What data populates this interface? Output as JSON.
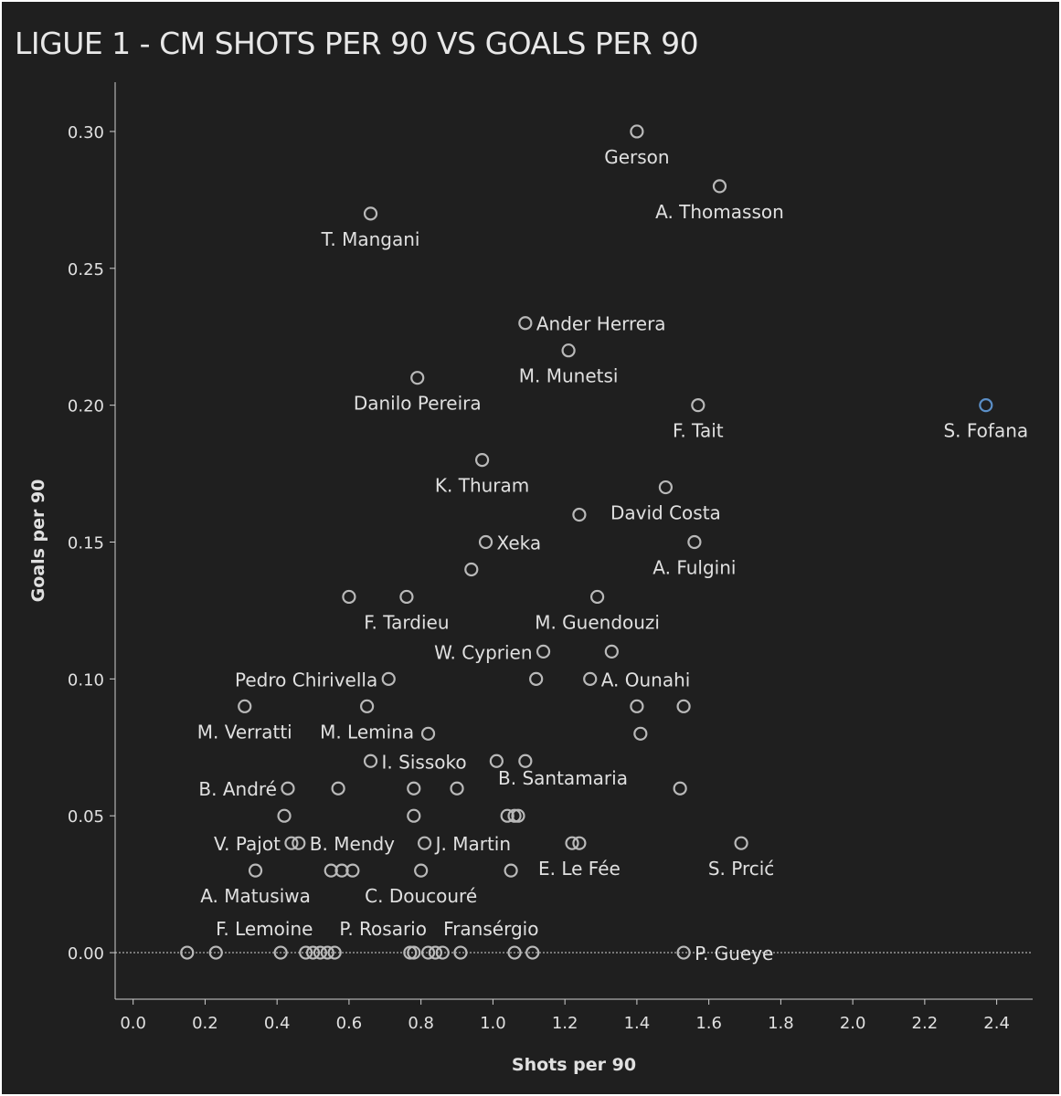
{
  "chart_data": {
    "type": "scatter",
    "title": "LIGUE 1 - CM SHOTS PER 90 VS GOALS PER 90",
    "xlabel": "Shots per 90",
    "ylabel": "Goals per 90",
    "xlim": [
      -0.05,
      2.5
    ],
    "ylim": [
      -0.017,
      0.318
    ],
    "xticks": [
      "0.0",
      "0.2",
      "0.4",
      "0.6",
      "0.8",
      "1.0",
      "1.2",
      "1.4",
      "1.6",
      "1.8",
      "2.0",
      "2.2",
      "2.4"
    ],
    "yticks": [
      "0.00",
      "0.05",
      "0.10",
      "0.15",
      "0.20",
      "0.25",
      "0.30"
    ],
    "grid": false,
    "zero_line": "dotted",
    "colors": {
      "background": "#1f1f1f",
      "point": "#b9b9b9",
      "highlight": "#5b8fc7",
      "text": "#e0e0e0"
    },
    "points": [
      {
        "x": 1.4,
        "y": 0.3,
        "label": "Gerson"
      },
      {
        "x": 1.63,
        "y": 0.28,
        "label": "A. Thomasson"
      },
      {
        "x": 0.66,
        "y": 0.27,
        "label": "T. Mangani"
      },
      {
        "x": 1.09,
        "y": 0.23,
        "label": "Ander Herrera"
      },
      {
        "x": 1.21,
        "y": 0.22,
        "label": "M. Munetsi"
      },
      {
        "x": 0.79,
        "y": 0.21,
        "label": "Danilo Pereira"
      },
      {
        "x": 1.57,
        "y": 0.2,
        "label": "F. Tait"
      },
      {
        "x": 2.37,
        "y": 0.2,
        "label": "S. Fofana",
        "highlight": true
      },
      {
        "x": 0.97,
        "y": 0.18,
        "label": "K. Thuram"
      },
      {
        "x": 1.48,
        "y": 0.17,
        "label": "David Costa"
      },
      {
        "x": 1.24,
        "y": 0.16,
        "label": ""
      },
      {
        "x": 0.98,
        "y": 0.15,
        "label": "Xeka"
      },
      {
        "x": 1.56,
        "y": 0.15,
        "label": "A. Fulgini"
      },
      {
        "x": 0.94,
        "y": 0.14,
        "label": ""
      },
      {
        "x": 0.6,
        "y": 0.13,
        "label": ""
      },
      {
        "x": 0.76,
        "y": 0.13,
        "label": "F. Tardieu"
      },
      {
        "x": 1.29,
        "y": 0.13,
        "label": "M. Guendouzi"
      },
      {
        "x": 1.14,
        "y": 0.11,
        "label": "W. Cyprien"
      },
      {
        "x": 1.33,
        "y": 0.11,
        "label": ""
      },
      {
        "x": 0.71,
        "y": 0.1,
        "label": "Pedro Chirivella"
      },
      {
        "x": 1.12,
        "y": 0.1,
        "label": ""
      },
      {
        "x": 1.27,
        "y": 0.1,
        "label": "A. Ounahi"
      },
      {
        "x": 0.31,
        "y": 0.09,
        "label": "M. Verratti"
      },
      {
        "x": 0.65,
        "y": 0.09,
        "label": "M. Lemina"
      },
      {
        "x": 1.4,
        "y": 0.09,
        "label": ""
      },
      {
        "x": 1.53,
        "y": 0.09,
        "label": ""
      },
      {
        "x": 0.82,
        "y": 0.08,
        "label": ""
      },
      {
        "x": 1.41,
        "y": 0.08,
        "label": ""
      },
      {
        "x": 0.66,
        "y": 0.07,
        "label": "I. Sissoko"
      },
      {
        "x": 1.01,
        "y": 0.07,
        "label": ""
      },
      {
        "x": 1.09,
        "y": 0.07,
        "label": ""
      },
      {
        "x": 0.43,
        "y": 0.06,
        "label": "B. André"
      },
      {
        "x": 0.57,
        "y": 0.06,
        "label": ""
      },
      {
        "x": 0.78,
        "y": 0.06,
        "label": ""
      },
      {
        "x": 0.9,
        "y": 0.06,
        "label": "B. Santamaria"
      },
      {
        "x": 1.52,
        "y": 0.06,
        "label": ""
      },
      {
        "x": 0.42,
        "y": 0.05,
        "label": ""
      },
      {
        "x": 0.78,
        "y": 0.05,
        "label": ""
      },
      {
        "x": 1.04,
        "y": 0.05,
        "label": ""
      },
      {
        "x": 1.06,
        "y": 0.05,
        "label": ""
      },
      {
        "x": 1.07,
        "y": 0.05,
        "label": ""
      },
      {
        "x": 0.44,
        "y": 0.04,
        "label": "V. Pajot"
      },
      {
        "x": 0.46,
        "y": 0.04,
        "label": "B. Mendy"
      },
      {
        "x": 0.81,
        "y": 0.04,
        "label": "J. Martin"
      },
      {
        "x": 1.22,
        "y": 0.04,
        "label": ""
      },
      {
        "x": 1.24,
        "y": 0.04,
        "label": "E. Le Fée"
      },
      {
        "x": 1.69,
        "y": 0.04,
        "label": "S. Prcić"
      },
      {
        "x": 0.34,
        "y": 0.03,
        "label": "A. Matusiwa"
      },
      {
        "x": 0.55,
        "y": 0.03,
        "label": ""
      },
      {
        "x": 0.58,
        "y": 0.03,
        "label": ""
      },
      {
        "x": 0.61,
        "y": 0.03,
        "label": ""
      },
      {
        "x": 0.8,
        "y": 0.03,
        "label": "C. Doucouré"
      },
      {
        "x": 1.05,
        "y": 0.03,
        "label": ""
      },
      {
        "x": 0.15,
        "y": 0.0,
        "label": ""
      },
      {
        "x": 0.23,
        "y": 0.0,
        "label": "F. Lemoine"
      },
      {
        "x": 0.41,
        "y": 0.0,
        "label": ""
      },
      {
        "x": 0.48,
        "y": 0.0,
        "label": ""
      },
      {
        "x": 0.5,
        "y": 0.0,
        "label": ""
      },
      {
        "x": 0.52,
        "y": 0.0,
        "label": ""
      },
      {
        "x": 0.54,
        "y": 0.0,
        "label": ""
      },
      {
        "x": 0.56,
        "y": 0.0,
        "label": "P. Rosario"
      },
      {
        "x": 0.77,
        "y": 0.0,
        "label": ""
      },
      {
        "x": 0.78,
        "y": 0.0,
        "label": ""
      },
      {
        "x": 0.82,
        "y": 0.0,
        "label": ""
      },
      {
        "x": 0.84,
        "y": 0.0,
        "label": ""
      },
      {
        "x": 0.86,
        "y": 0.0,
        "label": "Fransérgio"
      },
      {
        "x": 0.91,
        "y": 0.0,
        "label": ""
      },
      {
        "x": 1.06,
        "y": 0.0,
        "label": ""
      },
      {
        "x": 1.11,
        "y": 0.0,
        "label": ""
      },
      {
        "x": 1.53,
        "y": 0.0,
        "label": "P. Gueye"
      }
    ]
  }
}
